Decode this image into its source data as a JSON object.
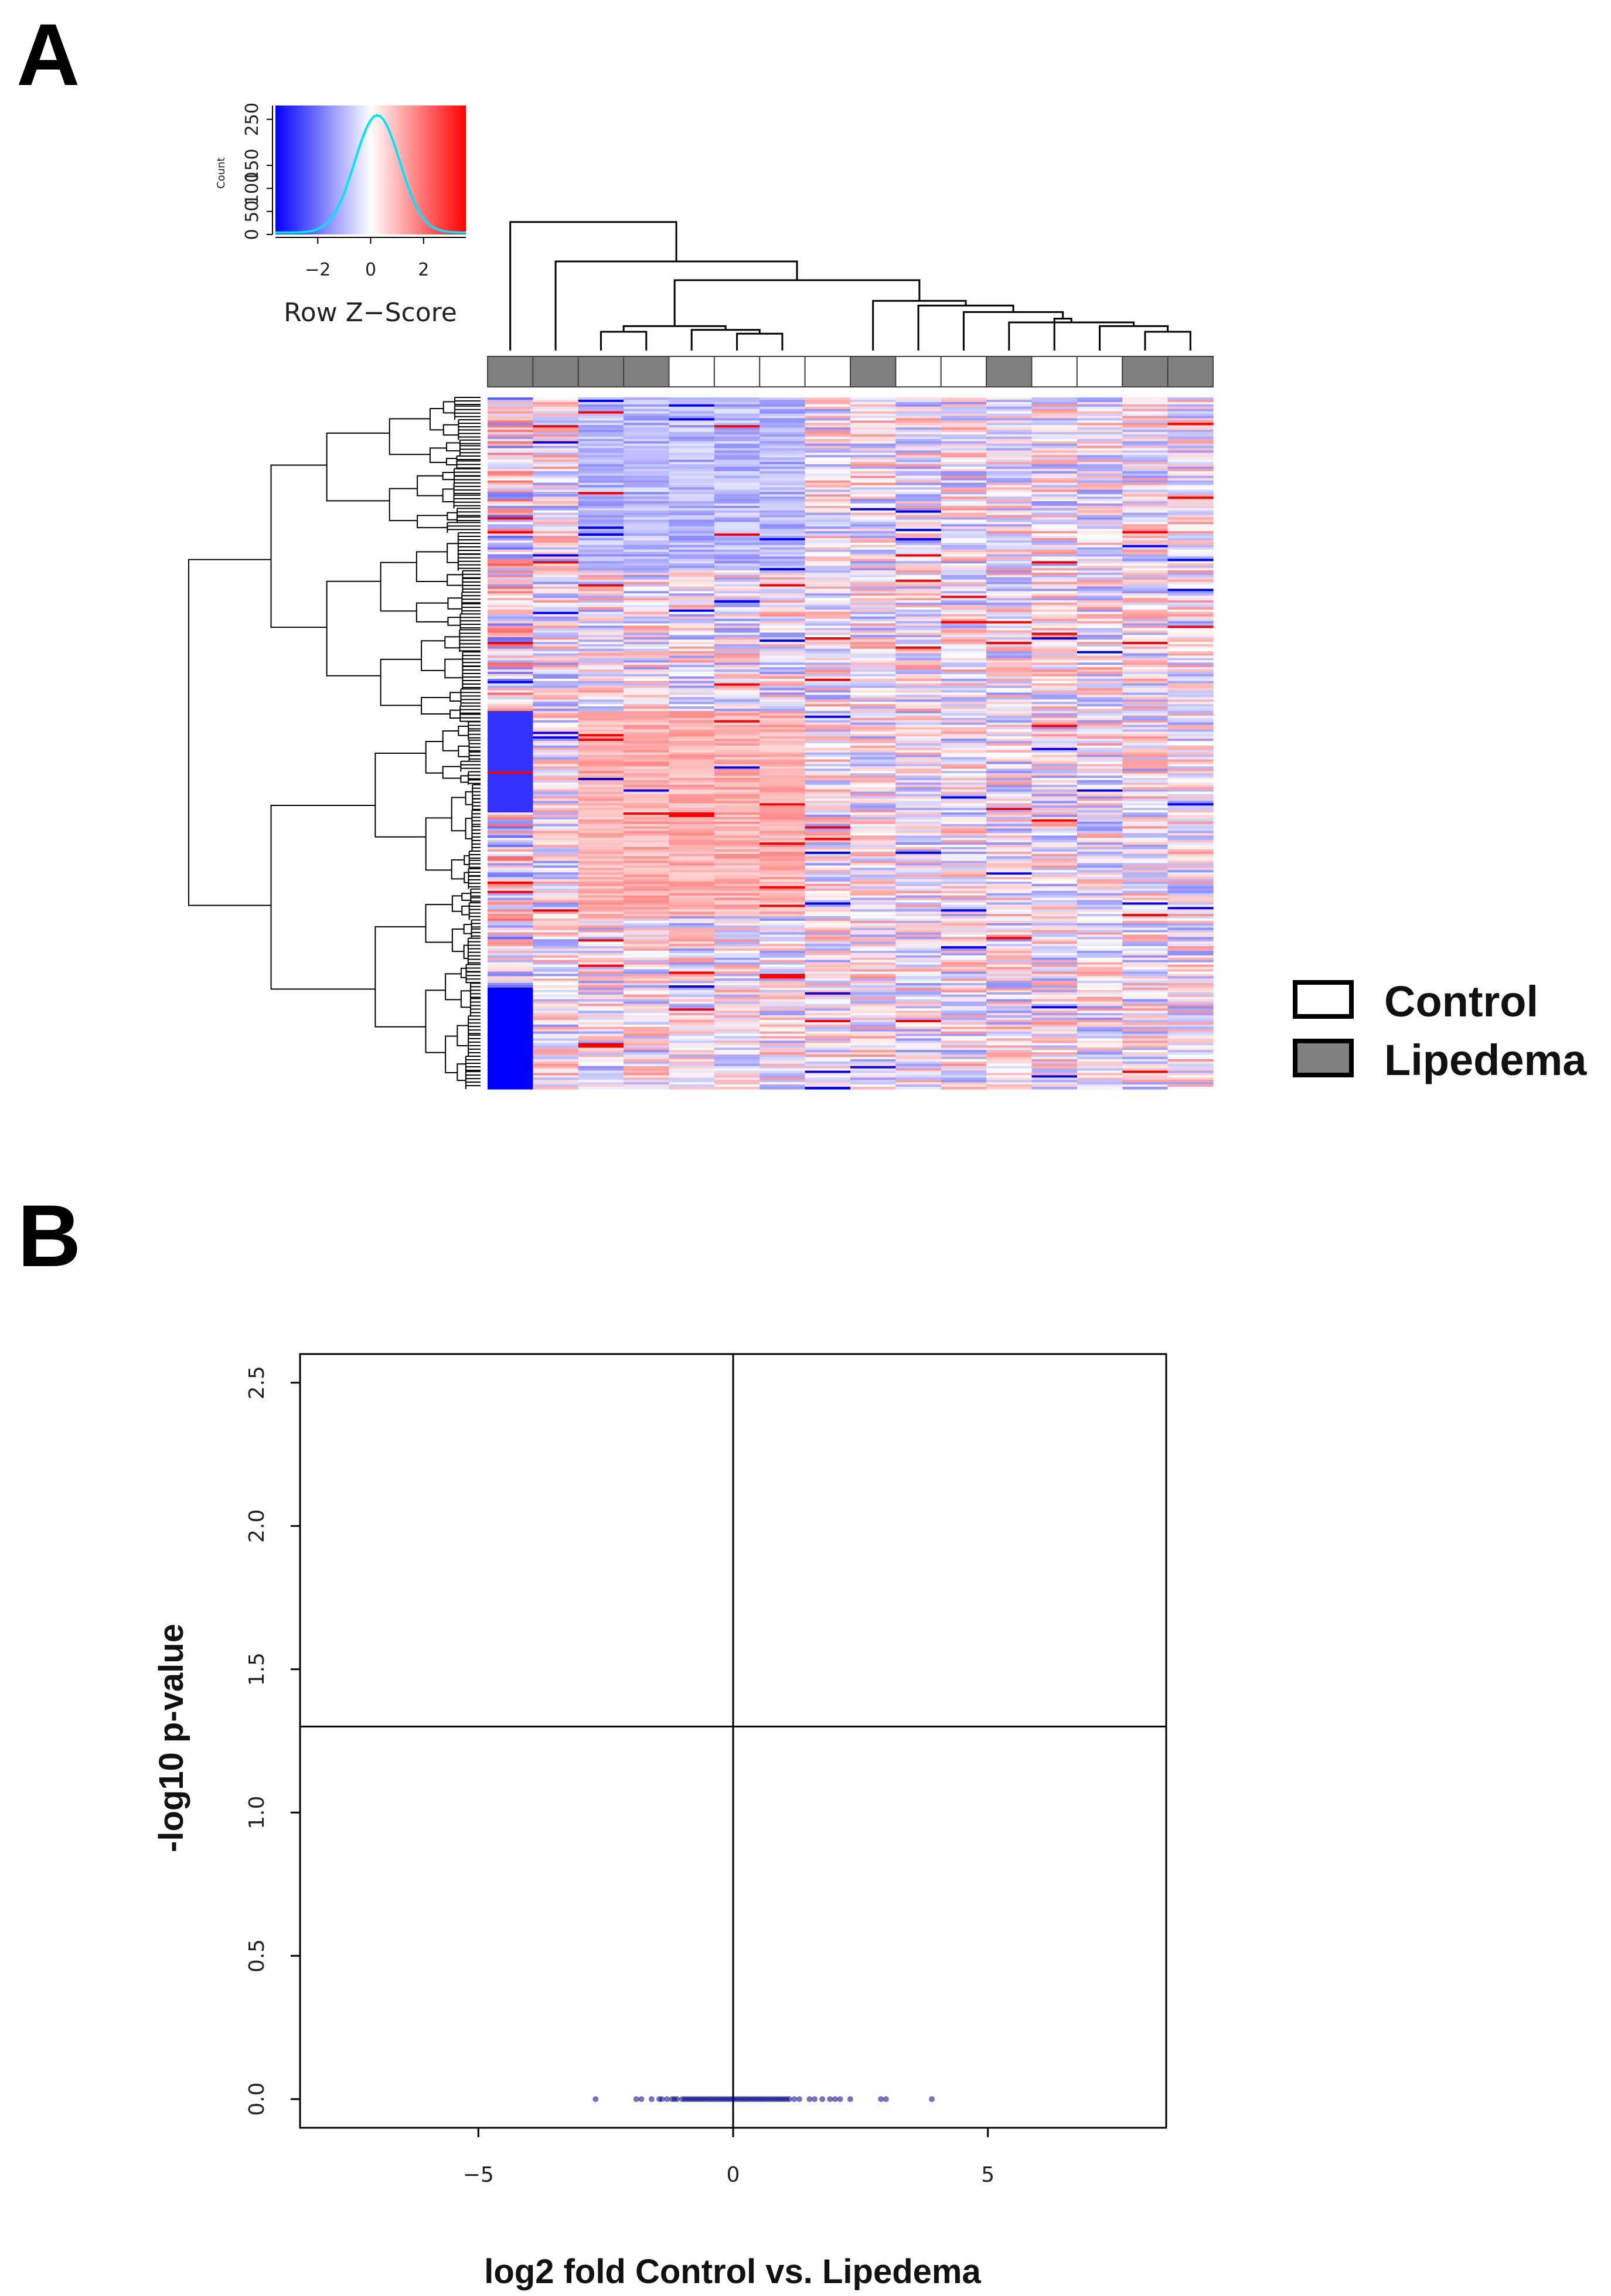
{
  "panels": {
    "a": "A",
    "b": "B"
  },
  "chart_data": [
    {
      "type": "heatmap",
      "title": "",
      "samples": 16,
      "sample_groups": [
        "Lipedema",
        "Lipedema",
        "Lipedema",
        "Lipedema",
        "Control",
        "Control",
        "Control",
        "Control",
        "Lipedema",
        "Control",
        "Control",
        "Lipedema",
        "Control",
        "Control",
        "Lipedema",
        "Lipedema"
      ],
      "rows_approx": 300,
      "color_scale": {
        "low": "#0000ff",
        "mid": "#ffffff",
        "high": "#ff0000"
      },
      "color_key": {
        "title": "Row Z−Score",
        "count_label": "Count",
        "x_ticks": [
          "−2",
          "0",
          "2"
        ],
        "x_tick_values": [
          -2,
          0,
          2
        ],
        "x_range": [
          -3.6,
          3.6
        ],
        "y_ticks": [
          "0",
          "50",
          "100",
          "150",
          "250"
        ],
        "y_tick_values": [
          0,
          50,
          100,
          150,
          250
        ],
        "y_range": [
          0,
          280
        ],
        "histogram_color": "#00e5ff"
      },
      "legend": [
        {
          "label": "Control",
          "color": "#ffffff"
        },
        {
          "label": "Lipedema",
          "color": "#808080"
        }
      ]
    },
    {
      "type": "scatter",
      "title": "",
      "xlabel": "log2 fold Control vs. Lipedema",
      "ylabel": "-log10 p-value",
      "xlim": [
        -8.5,
        8.5
      ],
      "ylim": [
        -0.1,
        2.6
      ],
      "x_ticks": [
        "−5",
        "0",
        "5"
      ],
      "x_tick_values": [
        -5,
        0,
        5
      ],
      "y_ticks": [
        "0.0",
        "0.5",
        "1.0",
        "1.5",
        "2.0",
        "2.5"
      ],
      "y_tick_values": [
        0,
        0.5,
        1,
        1.5,
        2,
        2.5
      ],
      "reference_lines": {
        "vertical_x": 0,
        "horizontal_y": 1.3
      },
      "point_color": "#00008b",
      "points_x": [
        -2.7,
        -1.9,
        -1.8,
        -1.6,
        -1.45,
        -1.4,
        -1.3,
        -1.2,
        -1.15,
        -1.1,
        -1.0,
        -0.95,
        -0.9,
        -0.85,
        -0.8,
        -0.75,
        -0.7,
        -0.65,
        -0.6,
        -0.55,
        -0.5,
        -0.45,
        -0.4,
        -0.35,
        -0.3,
        -0.25,
        -0.2,
        -0.15,
        -0.1,
        -0.05,
        0.0,
        0.05,
        0.1,
        0.15,
        0.2,
        0.25,
        0.3,
        0.35,
        0.4,
        0.45,
        0.5,
        0.55,
        0.6,
        0.65,
        0.7,
        0.75,
        0.8,
        0.85,
        0.9,
        0.95,
        1.0,
        1.05,
        1.1,
        1.2,
        1.3,
        1.5,
        1.6,
        1.75,
        1.9,
        2.0,
        2.1,
        2.3,
        2.9,
        3.0,
        3.9
      ],
      "points_y": 0.0
    }
  ]
}
